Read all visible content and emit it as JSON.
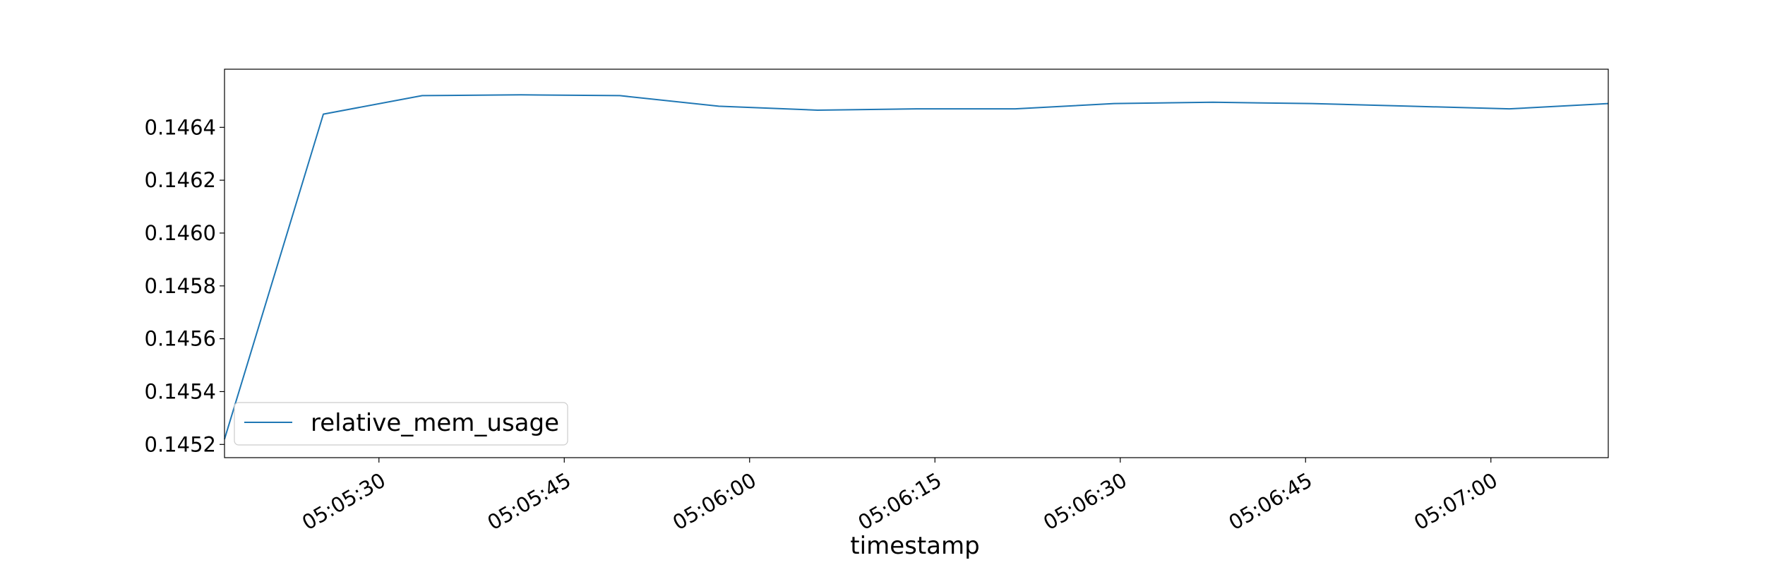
{
  "chart_data": {
    "type": "line",
    "title": "",
    "xlabel": "timestamp",
    "ylabel": "",
    "x_tick_labels": [
      "05:05:30",
      "05:05:45",
      "05:06:00",
      "05:06:15",
      "05:06:30",
      "05:06:45",
      "05:07:00"
    ],
    "y_tick_labels": [
      "0.1452",
      "0.1454",
      "0.1456",
      "0.1458",
      "0.1460",
      "0.1462",
      "0.1464"
    ],
    "x_range": [
      "05:05:17.5",
      "05:07:09.5"
    ],
    "ylim": [
      0.14515,
      0.14662
    ],
    "grid": false,
    "legend": {
      "position": "lower-left"
    },
    "series": [
      {
        "name": "relative_mem_usage",
        "color": "#1f77b4",
        "x": [
          "05:05:17.5",
          "05:05:25.5",
          "05:05:33.5",
          "05:05:41.5",
          "05:05:49.5",
          "05:05:57.5",
          "05:06:05.5",
          "05:06:13.5",
          "05:06:21.5",
          "05:06:29.5",
          "05:06:37.5",
          "05:06:45.5",
          "05:06:53.5",
          "05:07:01.5",
          "05:07:09.5"
        ],
        "y": [
          0.14522,
          0.14645,
          0.14652,
          0.146523,
          0.14652,
          0.14648,
          0.146465,
          0.14647,
          0.14647,
          0.14649,
          0.146495,
          0.14649,
          0.14648,
          0.14647,
          0.14649
        ]
      }
    ]
  }
}
